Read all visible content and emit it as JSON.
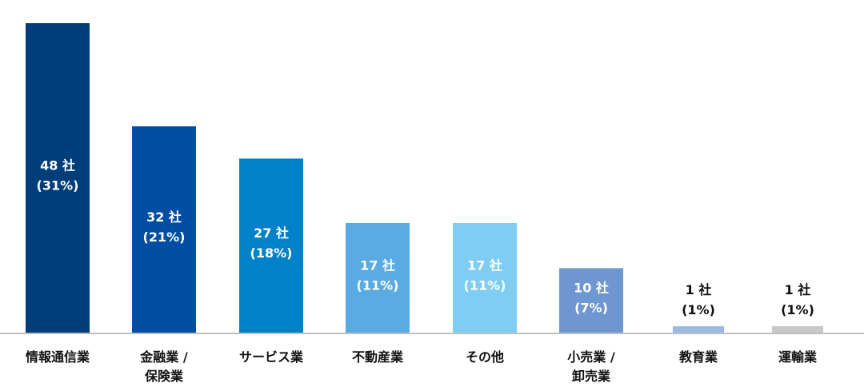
{
  "chart_data": {
    "type": "bar",
    "categories": [
      [
        "情報通信業"
      ],
      [
        "金融業 /",
        "保険業"
      ],
      [
        "サービス業"
      ],
      [
        "不動産業"
      ],
      [
        "その他"
      ],
      [
        "小売業 /",
        "卸売業"
      ],
      [
        "教育業"
      ],
      [
        "運輸業"
      ]
    ],
    "values": [
      48,
      32,
      27,
      17,
      17,
      10,
      1,
      1
    ],
    "value_labels": [
      "48 社",
      "32 社",
      "27 社",
      "17 社",
      "17 社",
      "10 社",
      "1 社",
      "1 社"
    ],
    "percent_labels": [
      "(31%)",
      "(21%)",
      "(18%)",
      "(11%)",
      "(11%)",
      "(7%)",
      "(1%)",
      "(1%)"
    ],
    "colors": [
      "#003d79",
      "#004ea2",
      "#0081c8",
      "#5aabe3",
      "#7fcdf2",
      "#6e97d2",
      "#9cbbe4",
      "#c8c8c8"
    ],
    "label_colors": [
      "#ffffff",
      "#ffffff",
      "#ffffff",
      "#ffffff",
      "#ffffff",
      "#ffffff",
      "#111111",
      "#111111"
    ],
    "title": "",
    "xlabel": "",
    "ylabel": "",
    "ylim": [
      0,
      48
    ],
    "grid": false,
    "legend": "none",
    "baseline_color": "#bfbfbf"
  }
}
